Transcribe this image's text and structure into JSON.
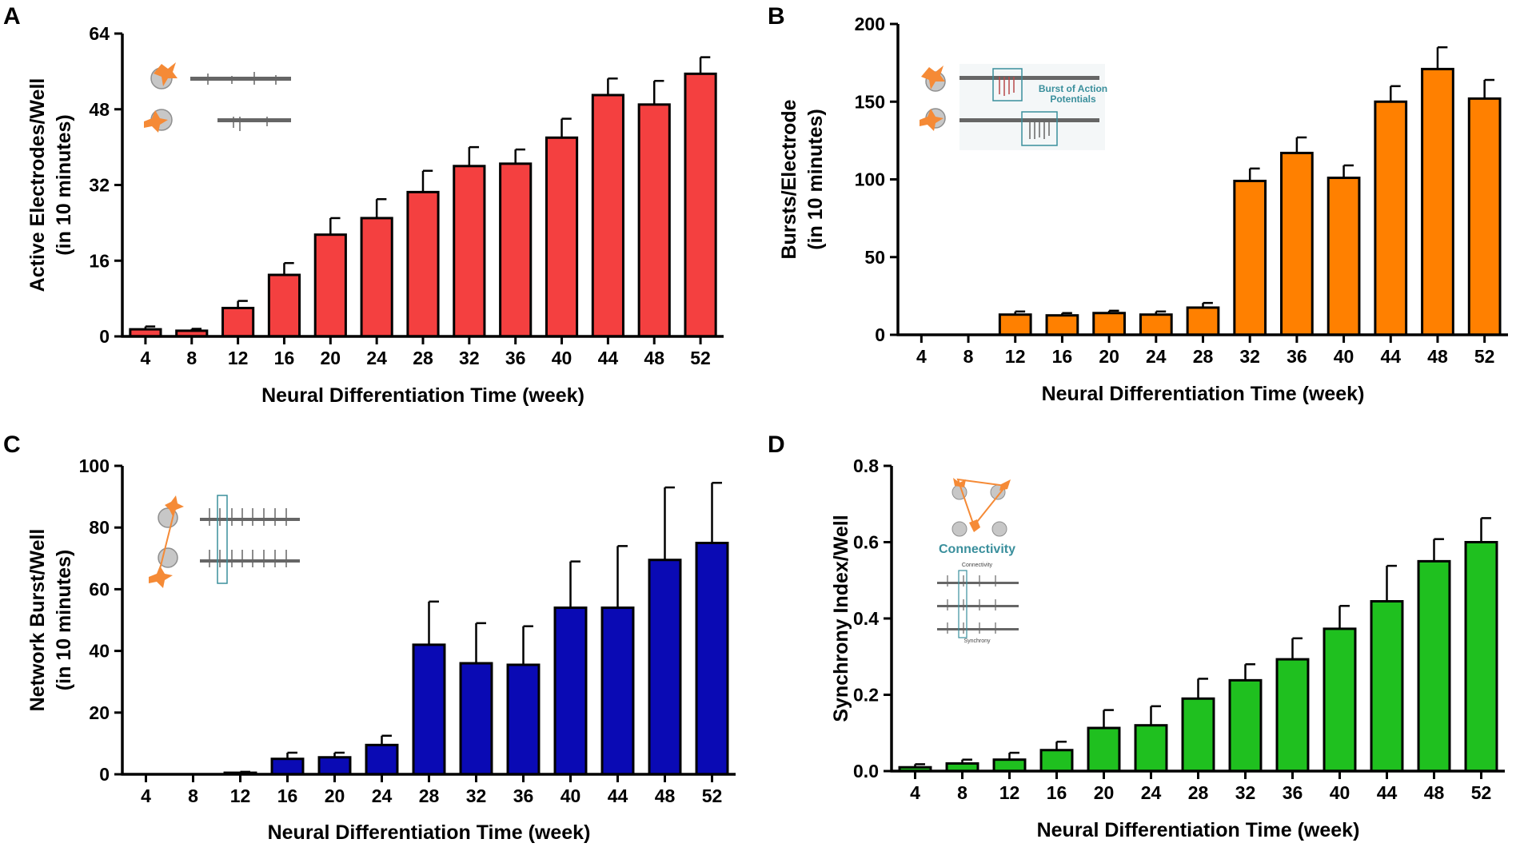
{
  "panels": [
    {
      "id": "A",
      "color": "#f44040",
      "chart_data": {
        "type": "bar",
        "categories": [
          "4",
          "8",
          "12",
          "16",
          "20",
          "24",
          "28",
          "32",
          "36",
          "40",
          "44",
          "48",
          "52"
        ],
        "values": [
          1.5,
          1.2,
          6,
          13,
          21.5,
          25,
          30.5,
          36,
          36.5,
          42,
          51,
          49,
          55.5
        ],
        "errors": [
          0.6,
          0.4,
          1.5,
          2.5,
          3.5,
          4,
          4.5,
          4,
          3,
          4,
          3.5,
          5,
          3.5
        ],
        "xlabel": "Neural Differentiation Time (week)",
        "ylabel": "Active Electrodes/Well",
        "ylabel2": "(in 10 minutes)",
        "ylim": [
          0,
          64
        ],
        "yticks": [
          "0",
          "16",
          "32",
          "48",
          "64"
        ]
      },
      "inset": {
        "icon": "neuron-pair-recording-icon"
      }
    },
    {
      "id": "B",
      "color": "#ff8000",
      "chart_data": {
        "type": "bar",
        "categories": [
          "4",
          "8",
          "12",
          "16",
          "20",
          "24",
          "28",
          "32",
          "36",
          "40",
          "44",
          "48",
          "52"
        ],
        "values": [
          0,
          0,
          13,
          12.5,
          14,
          13,
          17.5,
          99,
          117,
          101,
          150,
          171,
          152
        ],
        "errors": [
          0,
          0,
          2,
          1.5,
          1.5,
          2,
          3,
          8,
          10,
          8,
          10,
          14,
          12
        ],
        "xlabel": "Neural Differentiation Time (week)",
        "ylabel": "Bursts/Electrode",
        "ylabel2": "(in 10 minutes)",
        "ylim": [
          0,
          200
        ],
        "yticks": [
          "0",
          "50",
          "100",
          "150",
          "200"
        ]
      },
      "inset": {
        "icon": "burst-recording-icon",
        "caption_line1": "Burst of Action",
        "caption_line2": "Potentials"
      }
    },
    {
      "id": "C",
      "color": "#0a0ab4",
      "chart_data": {
        "type": "bar",
        "categories": [
          "4",
          "8",
          "12",
          "16",
          "20",
          "24",
          "28",
          "32",
          "36",
          "40",
          "44",
          "48",
          "52"
        ],
        "values": [
          0,
          0,
          0.5,
          5,
          5.5,
          9.5,
          42,
          36,
          35.5,
          54,
          54,
          69.5,
          75
        ],
        "errors": [
          0,
          0,
          0.3,
          2,
          1.5,
          3,
          14,
          13,
          12.5,
          15,
          20,
          23.5,
          19.5
        ],
        "xlabel": "Neural Differentiation Time (week)",
        "ylabel": "Network  Burst/Well",
        "ylabel2": "(in 10 minutes)",
        "ylim": [
          0,
          100
        ],
        "yticks": [
          "0",
          "20",
          "40",
          "60",
          "80",
          "100"
        ]
      },
      "inset": {
        "icon": "network-burst-recording-icon"
      }
    },
    {
      "id": "D",
      "color": "#1fc01f",
      "chart_data": {
        "type": "bar",
        "categories": [
          "4",
          "8",
          "12",
          "16",
          "20",
          "24",
          "28",
          "32",
          "36",
          "40",
          "44",
          "48",
          "52"
        ],
        "values": [
          0.01,
          0.02,
          0.03,
          0.055,
          0.113,
          0.12,
          0.19,
          0.238,
          0.293,
          0.373,
          0.445,
          0.55,
          0.6
        ],
        "errors": [
          0.008,
          0.01,
          0.018,
          0.022,
          0.047,
          0.05,
          0.052,
          0.042,
          0.055,
          0.06,
          0.093,
          0.058,
          0.063
        ],
        "xlabel": "Neural Differentiation Time (week)",
        "ylabel": "Synchrony Index/Well",
        "ylabel2": "",
        "ylim": [
          0,
          0.8
        ],
        "yticks": [
          "0.0",
          "0.2",
          "0.4",
          "0.6",
          "0.8"
        ]
      },
      "inset": {
        "icon": "connectivity-network-icon",
        "title": "Connectivity",
        "label_top": "Connectivity",
        "label_bottom": "Synchrony"
      }
    }
  ]
}
